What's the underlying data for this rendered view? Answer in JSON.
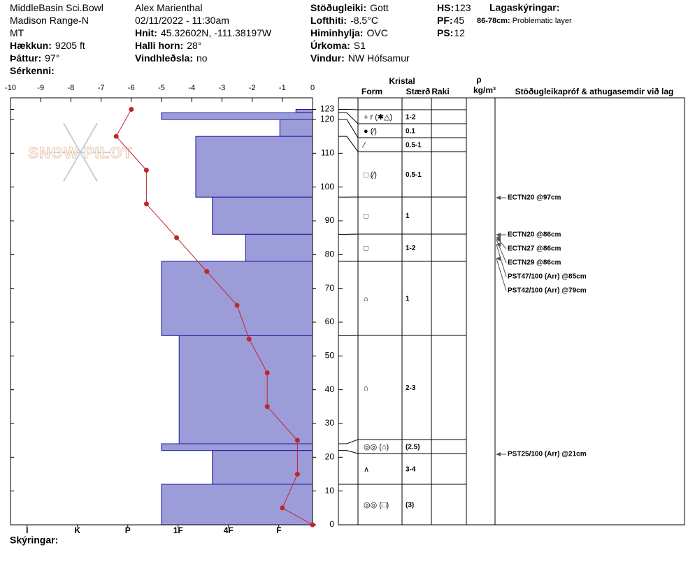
{
  "header": {
    "col1": [
      {
        "text": "MiddleBasin Sci.Bowl"
      },
      {
        "text": "Madison Range-N"
      },
      {
        "text": "MT"
      },
      {
        "label": "Hækkun:",
        "value": "9205 ft"
      },
      {
        "label": "Þáttur:",
        "value": "97°"
      },
      {
        "label": "Sérkenni:"
      }
    ],
    "col2": [
      {
        "text": "Alex Marienthal"
      },
      {
        "text": "02/11/2022 - 11:30am"
      },
      {
        "label": "Hnit:",
        "value": "45.32602N, -111.38197W"
      },
      {
        "label": "Halli horn:",
        "value": "28°"
      },
      {
        "label": "Vindhleðsla:",
        "value": "no"
      }
    ],
    "col3": [
      {
        "label": "Stöðugleiki:",
        "value": "Gott"
      },
      {
        "label": "Lofthiti:",
        "value": "-8.5°C"
      },
      {
        "label": "Himinhylja:",
        "value": "OVC"
      },
      {
        "label": "Úrkoma:",
        "value": "S1"
      },
      {
        "label": "Vindur:",
        "value": "NW Hófsamur"
      }
    ],
    "col4": [
      {
        "label": "HS:",
        "value": "123"
      },
      {
        "label": "PF:",
        "value": "45"
      },
      {
        "label": "PS:",
        "value": "12"
      }
    ]
  },
  "legend": {
    "title": "Lagaskýringar:",
    "items": [
      {
        "label": "86-78cm:",
        "value": "Problematic layer"
      }
    ]
  },
  "logo": "SNOW PILOT",
  "footer": "Skýringar:",
  "table_headers": {
    "crystal": "Kristal",
    "form": "Form",
    "size": "Stærð",
    "moisture": "Raki",
    "density": "ρ",
    "density_unit": "kg/m³",
    "tests": "Stöðugleikapróf & athugasemdir við lag"
  },
  "tests": [
    "ECTN20 @97cm",
    "ECTN20 @86cm",
    "ECTN27 @86cm",
    "ECTN29 @86cm",
    "PST47/100 (Arr) @85cm",
    "PST42/100 (Arr) @79cm",
    "PST25/100 (Arr) @21cm"
  ],
  "chart_data": {
    "type": "snow-profile",
    "ylim": [
      0,
      126
    ],
    "yticks": [
      0,
      10,
      20,
      30,
      40,
      50,
      60,
      70,
      80,
      90,
      100,
      110,
      120,
      123
    ],
    "xlim": [
      -10,
      0
    ],
    "xticks": [
      -10,
      -9,
      -8,
      -7,
      -6,
      -5,
      -4,
      -3,
      -2,
      -1,
      0
    ],
    "x2lim": [
      6,
      0
    ],
    "x2ticks": [
      {
        "value": 5.67,
        "label": "I"
      },
      {
        "value": 4.67,
        "label": "K"
      },
      {
        "value": 3.67,
        "label": "P"
      },
      {
        "value": 2.67,
        "label": "1F"
      },
      {
        "value": 1.67,
        "label": "4F"
      },
      {
        "value": 0.67,
        "label": "F"
      }
    ],
    "temperature": {
      "color": "#c0262d",
      "depths": [
        123,
        115,
        105,
        95,
        85,
        75,
        65,
        55,
        45,
        35,
        25,
        15,
        5,
        0
      ],
      "values": [
        -6,
        -6.5,
        -5.5,
        -5.5,
        -4.5,
        -3.5,
        -2.5,
        -2.1,
        -1.5,
        -1.5,
        -0.5,
        -0.5,
        -1,
        0
      ]
    },
    "layers": {
      "color": "#9c9cd8",
      "tops": [
        123,
        122,
        120,
        115,
        97,
        86,
        78,
        56,
        24,
        22,
        12
      ],
      "bottoms": [
        122,
        120,
        115,
        97,
        86,
        78,
        56,
        24,
        22,
        12,
        0
      ],
      "values": [
        0.33,
        3,
        0.65,
        2.32,
        1.99,
        1.33,
        3,
        2.65,
        3,
        1.99,
        3
      ],
      "forms": [
        "+ r (✱△)",
        "● (∕)",
        "∕",
        "□ (∕)",
        "□",
        "□",
        "⌂",
        "⌂",
        "◎◎ (⌂)",
        "∧",
        "◎◎ (□)"
      ],
      "sizes": [
        "1-2",
        "0.1",
        "0.5-1",
        "0.5-1",
        "1",
        "1-2",
        "1",
        "2-3",
        "(2.5)",
        "3-4",
        "(3)"
      ]
    }
  }
}
